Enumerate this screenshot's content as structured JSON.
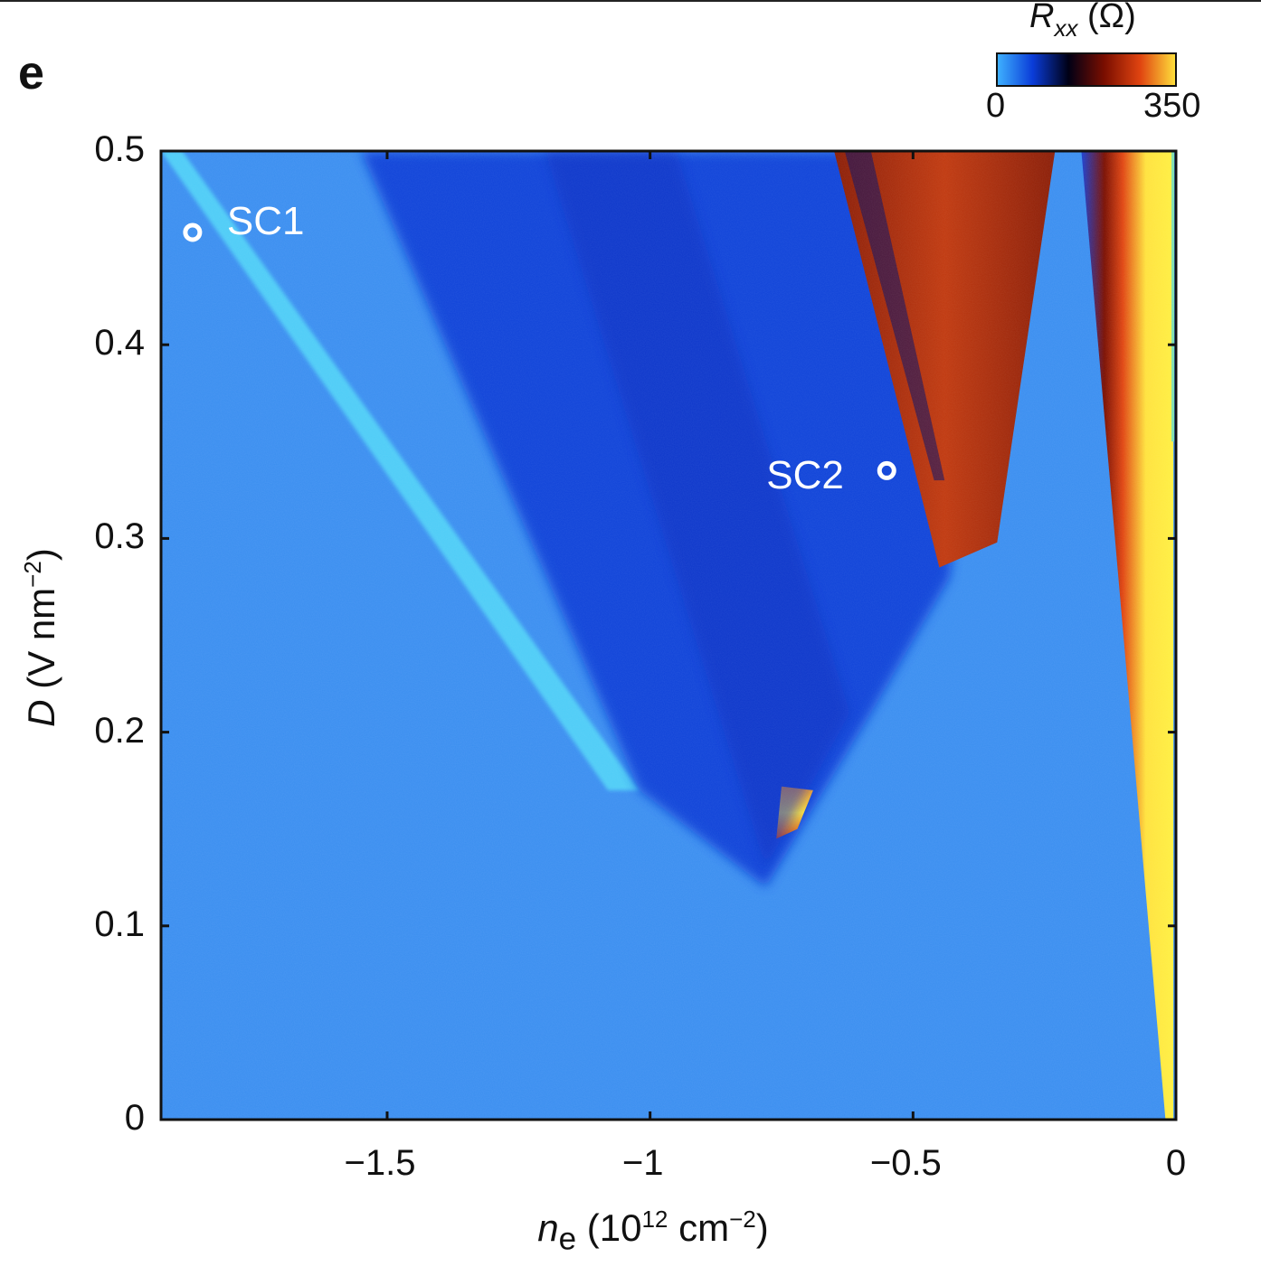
{
  "panel_label": "e",
  "chart_data": {
    "type": "heatmap",
    "x_axis": {
      "label_symbol": "n",
      "label_subscript": "e",
      "label_unit_pre": " (10",
      "label_unit_exp": "12",
      "label_unit_mid": " cm",
      "label_unit_exp2": "−2",
      "label_unit_post": ")",
      "range": [
        -1.93,
        0
      ],
      "ticks": [
        -1.5,
        -1,
        -0.5,
        0
      ],
      "tick_labels": [
        "−1.5",
        "−1",
        "−0.5",
        "0"
      ]
    },
    "y_axis": {
      "label_symbol": "D",
      "label_unit_pre": " (V nm",
      "label_unit_exp": "−2",
      "label_unit_post": ")",
      "range": [
        0,
        0.5
      ],
      "ticks": [
        0,
        0.1,
        0.2,
        0.3,
        0.4,
        0.5
      ],
      "tick_labels": [
        "0",
        "0.1",
        "0.2",
        "0.3",
        "0.4",
        "0.5"
      ]
    },
    "colorbar": {
      "quantity_symbol": "R",
      "quantity_subscript": "xx",
      "unit": " (Ω)",
      "min": 0,
      "max": 350,
      "min_label": "0",
      "max_label": "350",
      "colors": [
        "#3fb2ff",
        "#0a3cd8",
        "#000015",
        "#7a0e00",
        "#e04410",
        "#ffe23c"
      ]
    },
    "annotations": [
      {
        "label": "SC1",
        "n_e": -1.87,
        "D": 0.458
      },
      {
        "label": "SC2",
        "n_e": -0.55,
        "D": 0.335
      }
    ],
    "regions": [
      {
        "description": "light-blue low-resistance band",
        "polygon": [
          [
            -1.93,
            0.5
          ],
          [
            -1.89,
            0.5
          ],
          [
            -1.02,
            0.17
          ],
          [
            -1.08,
            0.17
          ]
        ]
      },
      {
        "description": "dark-blue wedge",
        "polygon": [
          [
            -1.55,
            0.5
          ],
          [
            -0.35,
            0.5
          ],
          [
            -0.43,
            0.28
          ],
          [
            -0.58,
            0.21
          ],
          [
            -0.78,
            0.12
          ],
          [
            -1.02,
            0.17
          ]
        ]
      },
      {
        "description": "resistive pocket near D≈0.15",
        "polygon": [
          [
            -0.76,
            0.145
          ],
          [
            -0.72,
            0.15
          ],
          [
            -0.69,
            0.17
          ],
          [
            -0.75,
            0.172
          ]
        ]
      },
      {
        "description": "resistive wedge upper right",
        "polygon": [
          [
            -0.65,
            0.5
          ],
          [
            -0.23,
            0.5
          ],
          [
            -0.34,
            0.298
          ],
          [
            -0.45,
            0.285
          ]
        ]
      },
      {
        "description": "high-resistance strip near n_e=0",
        "polygon": [
          [
            -0.18,
            0.5
          ],
          [
            -0.005,
            0.5
          ],
          [
            -0.005,
            0
          ],
          [
            -0.02,
            0
          ]
        ]
      }
    ]
  }
}
